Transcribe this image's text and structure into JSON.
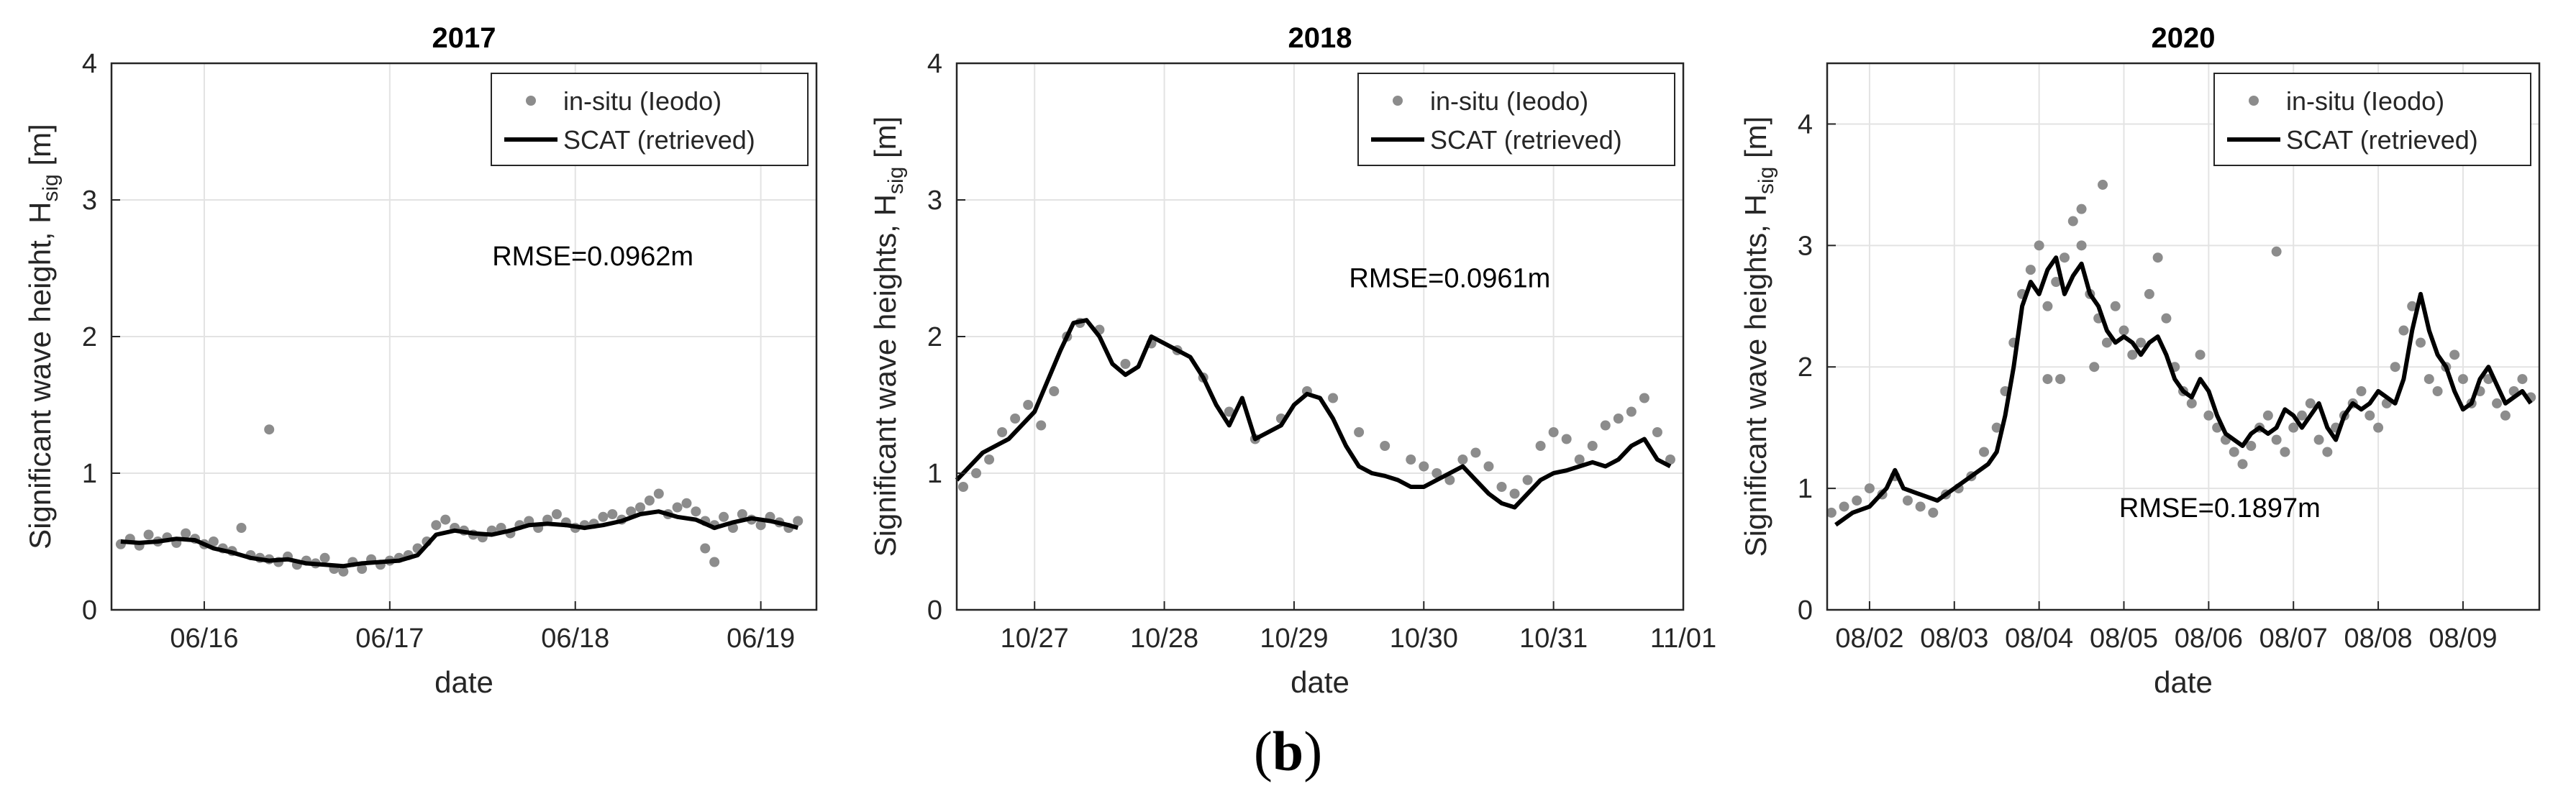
{
  "figure": {
    "caption_open": "(",
    "caption_letter": "b",
    "caption_close": ")"
  },
  "chart_data": [
    {
      "type": "line",
      "title": "2017",
      "xlabel": "date",
      "ylabel": "Significant wave height, H",
      "ylabel_sub": "sig",
      "ylabel_unit": " [m]",
      "xlim": [
        0,
        3.8
      ],
      "ylim": [
        0,
        4
      ],
      "xticks": [
        0.5,
        1.5,
        2.5,
        3.5
      ],
      "xtick_labels": [
        "06/16",
        "06/17",
        "06/18",
        "06/19"
      ],
      "yticks": [
        0,
        1,
        2,
        3,
        4
      ],
      "ytick_labels": [
        "0",
        "1",
        "2",
        "3",
        "4"
      ],
      "grid": true,
      "legend": [
        "in-situ (Ieodo)",
        "SCAT (retrieved)"
      ],
      "annotation": "RMSE=0.0962m",
      "series": [
        {
          "name": "in-situ (Ieodo)",
          "style": "scatter",
          "color": "#8c8c8c",
          "x": [
            0.05,
            0.1,
            0.15,
            0.2,
            0.25,
            0.3,
            0.35,
            0.4,
            0.45,
            0.5,
            0.55,
            0.6,
            0.65,
            0.7,
            0.75,
            0.8,
            0.85,
            0.9,
            0.95,
            1.0,
            1.05,
            1.1,
            1.15,
            1.2,
            1.25,
            1.3,
            1.35,
            1.4,
            1.45,
            1.5,
            1.55,
            1.6,
            1.65,
            1.7,
            1.75,
            1.8,
            1.85,
            1.9,
            1.95,
            2.0,
            2.05,
            2.1,
            2.15,
            2.2,
            2.25,
            2.3,
            2.35,
            2.4,
            2.45,
            2.5,
            2.55,
            2.6,
            2.65,
            2.7,
            2.75,
            2.8,
            2.85,
            2.9,
            2.95,
            3.0,
            3.05,
            3.1,
            3.15,
            3.2,
            3.25,
            3.3,
            3.35,
            3.4,
            3.45,
            3.5,
            3.55,
            3.6,
            3.65,
            3.7,
            0.85,
            3.2,
            3.25
          ],
          "y": [
            0.48,
            0.52,
            0.47,
            0.55,
            0.5,
            0.53,
            0.49,
            0.56,
            0.52,
            0.48,
            0.5,
            0.45,
            0.43,
            0.6,
            0.4,
            0.38,
            0.37,
            0.35,
            0.39,
            0.33,
            0.36,
            0.34,
            0.38,
            0.3,
            0.28,
            0.35,
            0.3,
            0.37,
            0.33,
            0.36,
            0.38,
            0.4,
            0.45,
            0.5,
            0.62,
            0.66,
            0.6,
            0.58,
            0.55,
            0.53,
            0.58,
            0.6,
            0.56,
            0.62,
            0.65,
            0.6,
            0.66,
            0.7,
            0.64,
            0.6,
            0.62,
            0.63,
            0.68,
            0.7,
            0.66,
            0.72,
            0.75,
            0.8,
            0.85,
            0.7,
            0.75,
            0.78,
            0.72,
            0.65,
            0.62,
            0.68,
            0.6,
            0.7,
            0.66,
            0.62,
            0.68,
            0.64,
            0.6,
            0.65,
            1.32,
            0.45,
            0.35
          ]
        },
        {
          "name": "SCAT (retrieved)",
          "style": "line",
          "color": "#000000",
          "x": [
            0.05,
            0.15,
            0.25,
            0.35,
            0.45,
            0.55,
            0.65,
            0.75,
            0.85,
            0.95,
            1.05,
            1.15,
            1.25,
            1.35,
            1.45,
            1.55,
            1.65,
            1.75,
            1.85,
            1.95,
            2.05,
            2.15,
            2.25,
            2.35,
            2.45,
            2.55,
            2.65,
            2.75,
            2.85,
            2.95,
            3.05,
            3.15,
            3.25,
            3.35,
            3.45,
            3.55,
            3.65,
            3.7
          ],
          "y": [
            0.5,
            0.49,
            0.5,
            0.52,
            0.51,
            0.45,
            0.42,
            0.38,
            0.36,
            0.37,
            0.34,
            0.33,
            0.32,
            0.34,
            0.35,
            0.36,
            0.4,
            0.55,
            0.58,
            0.56,
            0.55,
            0.58,
            0.62,
            0.63,
            0.62,
            0.6,
            0.62,
            0.65,
            0.7,
            0.72,
            0.68,
            0.66,
            0.6,
            0.64,
            0.67,
            0.65,
            0.62,
            0.6
          ]
        }
      ]
    },
    {
      "type": "line",
      "title": "2018",
      "xlabel": "date",
      "ylabel": "Significant wave heights, H",
      "ylabel_sub": "sig",
      "ylabel_unit": " [m]",
      "xlim": [
        0,
        5.6
      ],
      "ylim": [
        0,
        4
      ],
      "xticks": [
        0.6,
        1.6,
        2.6,
        3.6,
        4.6,
        5.6
      ],
      "xtick_labels": [
        "10/27",
        "10/28",
        "10/29",
        "10/30",
        "10/31",
        "11/01"
      ],
      "yticks": [
        0,
        1,
        2,
        3,
        4
      ],
      "ytick_labels": [
        "0",
        "1",
        "2",
        "3",
        "4"
      ],
      "grid": true,
      "legend": [
        "in-situ (Ieodo)",
        "SCAT (retrieved)"
      ],
      "annotation": "RMSE=0.0961m",
      "series": [
        {
          "name": "in-situ (Ieodo)",
          "style": "scatter",
          "color": "#8c8c8c",
          "x": [
            0.05,
            0.15,
            0.25,
            0.35,
            0.45,
            0.55,
            0.65,
            0.75,
            0.85,
            0.95,
            1.1,
            1.3,
            1.5,
            1.7,
            1.9,
            2.1,
            2.3,
            2.5,
            2.7,
            2.9,
            3.1,
            3.3,
            3.5,
            3.6,
            3.7,
            3.8,
            3.9,
            4.0,
            4.1,
            4.2,
            4.3,
            4.4,
            4.5,
            4.6,
            4.7,
            4.8,
            4.9,
            5.0,
            5.1,
            5.2,
            5.3,
            5.4,
            5.5
          ],
          "y": [
            0.9,
            1.0,
            1.1,
            1.3,
            1.4,
            1.5,
            1.35,
            1.6,
            2.0,
            2.1,
            2.05,
            1.8,
            1.95,
            1.9,
            1.7,
            1.45,
            1.25,
            1.4,
            1.6,
            1.55,
            1.3,
            1.2,
            1.1,
            1.05,
            1.0,
            0.95,
            1.1,
            1.15,
            1.05,
            0.9,
            0.85,
            0.95,
            1.2,
            1.3,
            1.25,
            1.1,
            1.2,
            1.35,
            1.4,
            1.45,
            1.55,
            1.3,
            1.1
          ]
        },
        {
          "name": "SCAT (retrieved)",
          "style": "line",
          "color": "#000000",
          "x": [
            0.0,
            0.2,
            0.4,
            0.6,
            0.8,
            0.9,
            1.0,
            1.1,
            1.2,
            1.3,
            1.4,
            1.5,
            1.6,
            1.7,
            1.8,
            1.9,
            2.0,
            2.1,
            2.2,
            2.3,
            2.4,
            2.5,
            2.6,
            2.7,
            2.8,
            2.9,
            3.0,
            3.1,
            3.2,
            3.3,
            3.4,
            3.5,
            3.6,
            3.7,
            3.8,
            3.9,
            4.0,
            4.1,
            4.2,
            4.3,
            4.4,
            4.5,
            4.6,
            4.7,
            4.8,
            4.9,
            5.0,
            5.1,
            5.2,
            5.3,
            5.4,
            5.5
          ],
          "y": [
            0.95,
            1.15,
            1.25,
            1.45,
            1.9,
            2.1,
            2.12,
            2.0,
            1.8,
            1.72,
            1.78,
            2.0,
            1.95,
            1.9,
            1.85,
            1.7,
            1.5,
            1.35,
            1.55,
            1.25,
            1.3,
            1.35,
            1.5,
            1.58,
            1.55,
            1.4,
            1.2,
            1.05,
            1.0,
            0.98,
            0.95,
            0.9,
            0.9,
            0.95,
            1.0,
            1.05,
            0.95,
            0.85,
            0.78,
            0.75,
            0.85,
            0.95,
            1.0,
            1.02,
            1.05,
            1.08,
            1.05,
            1.1,
            1.2,
            1.25,
            1.1,
            1.05
          ]
        }
      ]
    },
    {
      "type": "line",
      "title": "2020",
      "xlabel": "date",
      "ylabel": "Significant wave heights, H",
      "ylabel_sub": "sig",
      "ylabel_unit": " [m]",
      "xlim": [
        0,
        8.4
      ],
      "ylim": [
        0,
        4.5
      ],
      "xticks": [
        0.5,
        1.5,
        2.5,
        3.5,
        4.5,
        5.5,
        6.5,
        7.5,
        8.5
      ],
      "xtick_labels": [
        "08/02",
        "08/03",
        "08/04",
        "08/05",
        "08/06",
        "08/07",
        "08/08",
        "08/09",
        ""
      ],
      "yticks": [
        0,
        1,
        2,
        3,
        4
      ],
      "ytick_labels": [
        "0",
        "1",
        "2",
        "3",
        "4"
      ],
      "grid": true,
      "legend": [
        "in-situ (Ieodo)",
        "SCAT (retrieved)"
      ],
      "annotation": "RMSE=0.1897m",
      "series": [
        {
          "name": "in-situ (Ieodo)",
          "style": "scatter",
          "color": "#8c8c8c",
          "x": [
            0.05,
            0.2,
            0.35,
            0.5,
            0.65,
            0.8,
            0.95,
            1.1,
            1.25,
            1.4,
            1.55,
            1.7,
            1.85,
            2.0,
            2.1,
            2.2,
            2.3,
            2.4,
            2.5,
            2.6,
            2.7,
            2.8,
            2.9,
            3.0,
            3.1,
            3.2,
            3.3,
            3.4,
            3.5,
            3.6,
            3.7,
            3.8,
            3.9,
            4.0,
            4.1,
            4.2,
            4.3,
            4.4,
            4.5,
            4.6,
            4.7,
            4.8,
            4.9,
            5.0,
            5.1,
            5.2,
            5.3,
            5.4,
            5.5,
            5.6,
            5.7,
            5.8,
            5.9,
            6.0,
            6.1,
            6.2,
            6.3,
            6.4,
            6.5,
            6.6,
            6.7,
            6.8,
            6.9,
            7.0,
            7.1,
            7.2,
            7.3,
            7.4,
            7.5,
            7.6,
            7.7,
            7.8,
            7.9,
            8.0,
            8.1,
            8.2,
            8.3,
            2.75,
            3.25,
            2.6,
            3.0,
            5.3,
            3.15
          ],
          "y": [
            0.8,
            0.85,
            0.9,
            1.0,
            0.95,
            1.1,
            0.9,
            0.85,
            0.8,
            0.95,
            1.0,
            1.1,
            1.3,
            1.5,
            1.8,
            2.2,
            2.6,
            2.8,
            3.0,
            2.5,
            2.7,
            2.9,
            3.2,
            3.0,
            2.6,
            2.4,
            2.2,
            2.5,
            2.3,
            2.1,
            2.2,
            2.6,
            2.9,
            2.4,
            2.0,
            1.8,
            1.7,
            2.1,
            1.6,
            1.5,
            1.4,
            1.3,
            1.2,
            1.35,
            1.5,
            1.6,
            1.4,
            1.3,
            1.5,
            1.6,
            1.7,
            1.4,
            1.3,
            1.5,
            1.6,
            1.7,
            1.8,
            1.6,
            1.5,
            1.7,
            2.0,
            2.3,
            2.5,
            2.2,
            1.9,
            1.8,
            2.0,
            2.1,
            1.9,
            1.7,
            1.8,
            1.9,
            1.7,
            1.6,
            1.8,
            1.9,
            1.75,
            1.9,
            3.5,
            1.9,
            3.3,
            2.95,
            2.0
          ]
        },
        {
          "name": "SCAT (retrieved)",
          "style": "line",
          "color": "#000000",
          "x": [
            0.1,
            0.3,
            0.5,
            0.7,
            0.8,
            0.9,
            1.1,
            1.3,
            1.5,
            1.7,
            1.9,
            2.0,
            2.1,
            2.2,
            2.3,
            2.4,
            2.5,
            2.6,
            2.7,
            2.8,
            2.9,
            3.0,
            3.1,
            3.2,
            3.3,
            3.4,
            3.5,
            3.6,
            3.7,
            3.8,
            3.9,
            4.0,
            4.1,
            4.2,
            4.3,
            4.4,
            4.5,
            4.6,
            4.7,
            4.8,
            4.9,
            5.0,
            5.1,
            5.2,
            5.3,
            5.4,
            5.5,
            5.6,
            5.7,
            5.8,
            5.9,
            6.0,
            6.1,
            6.2,
            6.3,
            6.4,
            6.5,
            6.6,
            6.7,
            6.8,
            6.9,
            7.0,
            7.1,
            7.2,
            7.3,
            7.4,
            7.5,
            7.6,
            7.7,
            7.8,
            7.9,
            8.0,
            8.1,
            8.2,
            8.3
          ],
          "y": [
            0.7,
            0.8,
            0.85,
            1.0,
            1.15,
            1.0,
            0.95,
            0.9,
            1.0,
            1.1,
            1.2,
            1.3,
            1.6,
            2.0,
            2.5,
            2.7,
            2.6,
            2.8,
            2.9,
            2.6,
            2.75,
            2.85,
            2.6,
            2.5,
            2.3,
            2.2,
            2.25,
            2.2,
            2.1,
            2.2,
            2.25,
            2.1,
            1.9,
            1.8,
            1.75,
            1.9,
            1.8,
            1.6,
            1.45,
            1.4,
            1.35,
            1.45,
            1.5,
            1.45,
            1.5,
            1.65,
            1.6,
            1.5,
            1.6,
            1.7,
            1.5,
            1.4,
            1.6,
            1.7,
            1.65,
            1.7,
            1.8,
            1.75,
            1.7,
            1.9,
            2.3,
            2.6,
            2.3,
            2.1,
            2.0,
            1.8,
            1.65,
            1.7,
            1.9,
            2.0,
            1.85,
            1.7,
            1.75,
            1.8,
            1.7
          ]
        }
      ]
    }
  ]
}
